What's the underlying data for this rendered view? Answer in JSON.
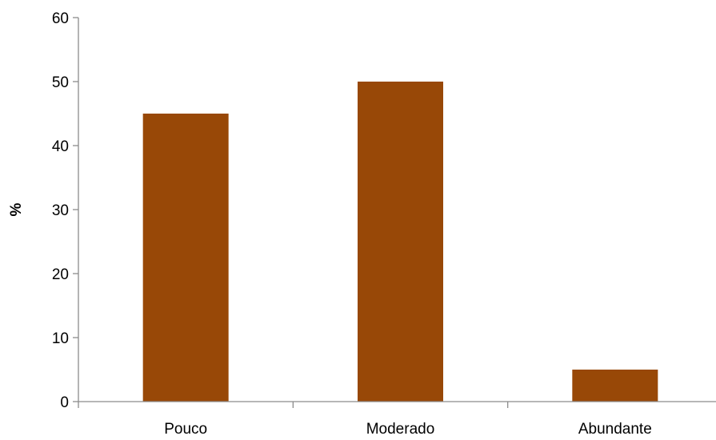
{
  "chart_data": {
    "type": "bar",
    "categories": [
      "Pouco",
      "Moderado",
      "Abundante"
    ],
    "values": [
      45,
      50,
      5
    ],
    "title": "",
    "xlabel": "",
    "ylabel": "%",
    "ylim": [
      0,
      60
    ],
    "yticks": [
      0,
      10,
      20,
      30,
      40,
      50,
      60
    ],
    "bar_color": "#984807",
    "grid": false,
    "legend": "none"
  }
}
